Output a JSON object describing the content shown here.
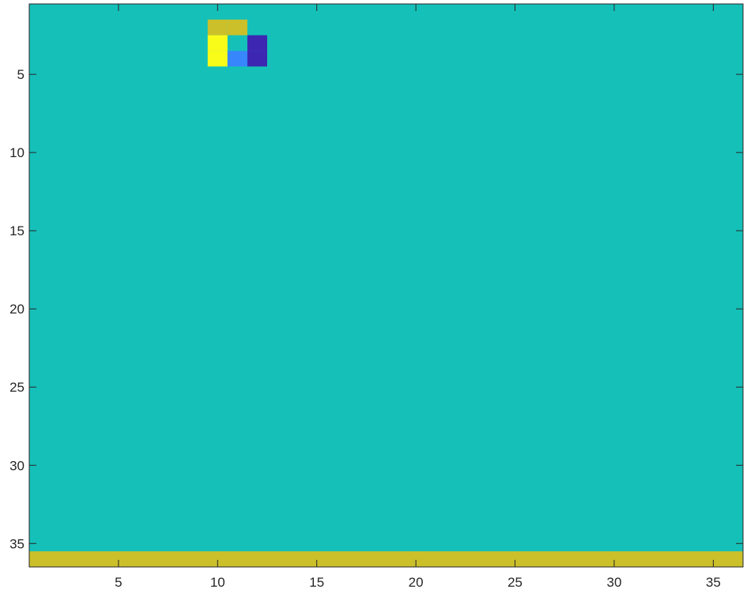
{
  "chart_data": {
    "type": "heatmap",
    "title": "",
    "xlabel": "",
    "ylabel": "",
    "xlim": [
      0.5,
      36.5
    ],
    "ylim": [
      0.5,
      36.5
    ],
    "y_direction": "reversed",
    "x_ticks": [
      5,
      10,
      15,
      20,
      25,
      30,
      35
    ],
    "y_ticks": [
      5,
      10,
      15,
      20,
      25,
      30,
      35
    ],
    "grid": false,
    "colorbar": false,
    "colors": {
      "background": "#15c0b9",
      "bottom_band": "#ccc02a",
      "yellow": "#f9fb19",
      "olive": "#ccc02a",
      "blue": "#3786fc",
      "indigo": "#3d27b2"
    },
    "background_value": "background",
    "cells": [
      {
        "col": 10,
        "row": 2,
        "color": "olive"
      },
      {
        "col": 11,
        "row": 2,
        "color": "olive"
      },
      {
        "col": 10,
        "row": 3,
        "color": "yellow"
      },
      {
        "col": 10,
        "row": 4,
        "color": "yellow"
      },
      {
        "col": 11,
        "row": 4,
        "color": "blue"
      },
      {
        "col": 12,
        "row": 3,
        "color": "indigo"
      },
      {
        "col": 12,
        "row": 4,
        "color": "indigo"
      }
    ],
    "bands": [
      {
        "row_from": 35.5,
        "row_to": 36.5,
        "color": "bottom_band"
      }
    ]
  }
}
